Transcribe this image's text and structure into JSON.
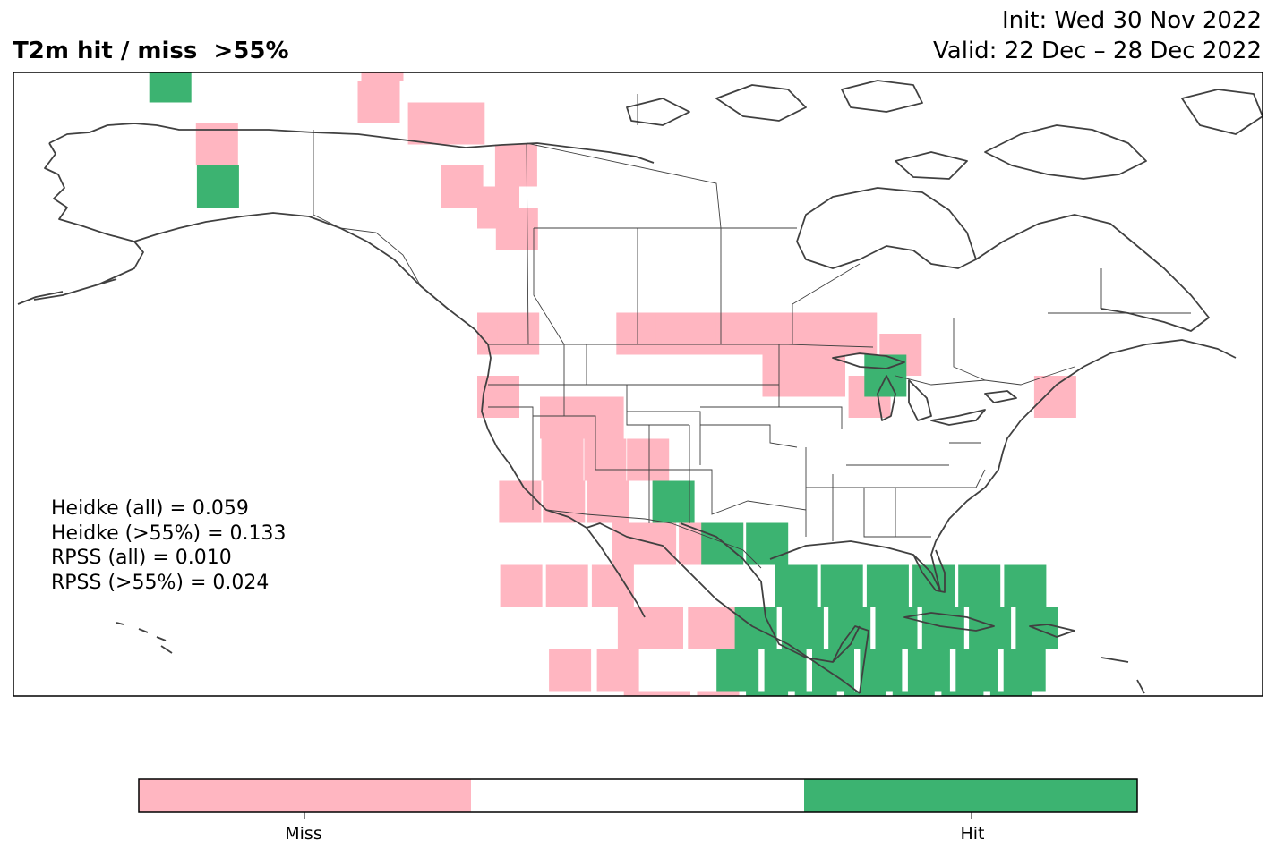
{
  "title": "T2m hit / miss  >55%",
  "init_text": "Init: Wed 30 Nov 2022",
  "valid_text": "Valid: 22 Dec – 28 Dec 2022",
  "stats": [
    "Heidke (all) = 0.059",
    "Heidke (>55%) = 0.133",
    "RPSS (all) = 0.010",
    "RPSS (>55%) = 0.024"
  ],
  "colors": {
    "miss": "#ffb6c1",
    "hit": "#3cb371",
    "neutral": "#ffffff",
    "coast": "#404040",
    "frame": "#000000"
  },
  "legend": {
    "categories": [
      "Miss",
      "",
      "Hit"
    ]
  },
  "grid_cells": {
    "miss": [
      [
        -168,
        67
      ],
      [
        -160,
        69
      ],
      [
        -155,
        69
      ],
      [
        -150,
        69
      ],
      [
        -158,
        67
      ],
      [
        -162,
        64
      ],
      [
        -156,
        59
      ],
      [
        -138,
        63
      ],
      [
        -138,
        61
      ],
      [
        -132,
        60
      ],
      [
        -128,
        60
      ],
      [
        -122,
        58
      ],
      [
        -128,
        57
      ],
      [
        -124,
        56
      ],
      [
        -122,
        55
      ],
      [
        -124,
        50
      ],
      [
        -122,
        50
      ],
      [
        -124,
        47
      ],
      [
        -118,
        46
      ],
      [
        -114,
        46
      ],
      [
        -118,
        44
      ],
      [
        -114,
        44
      ],
      [
        -110,
        44
      ],
      [
        -122,
        42
      ],
      [
        -118,
        42
      ],
      [
        -114,
        42
      ],
      [
        -112,
        40
      ],
      [
        -110,
        40
      ],
      [
        -106,
        40
      ],
      [
        -104,
        40
      ],
      [
        -122,
        38
      ],
      [
        -118,
        38
      ],
      [
        -114,
        38
      ],
      [
        -112,
        36
      ],
      [
        -110,
        36
      ],
      [
        -106,
        36
      ],
      [
        -104,
        36
      ],
      [
        -118,
        34
      ],
      [
        -114,
        34
      ],
      [
        -112,
        32
      ],
      [
        -110,
        32
      ],
      [
        -106,
        32
      ],
      [
        -110,
        50
      ],
      [
        -106,
        50
      ],
      [
        -104,
        50
      ],
      [
        -100,
        50
      ],
      [
        -96,
        50
      ],
      [
        -94,
        50
      ],
      [
        -90,
        50
      ],
      [
        -88,
        50
      ],
      [
        -84,
        49
      ],
      [
        -96,
        48
      ],
      [
        -92,
        48
      ],
      [
        -88,
        47
      ],
      [
        -70,
        47
      ]
    ],
    "hit": [
      [
        -168,
        70
      ],
      [
        -164,
        68
      ],
      [
        -165,
        64
      ],
      [
        -163,
        62
      ],
      [
        -155,
        57
      ],
      [
        -150,
        69
      ],
      [
        -86,
        48
      ],
      [
        -108,
        42
      ],
      [
        -104,
        40
      ],
      [
        -100,
        40
      ],
      [
        -98,
        38
      ],
      [
        -94,
        38
      ],
      [
        -90,
        38
      ],
      [
        -86,
        38
      ],
      [
        -82,
        38
      ],
      [
        -78,
        38
      ],
      [
        -102,
        36
      ],
      [
        -98,
        36
      ],
      [
        -94,
        36
      ],
      [
        -90,
        36
      ],
      [
        -86,
        36
      ],
      [
        -82,
        36
      ],
      [
        -78,
        36
      ],
      [
        -104,
        34
      ],
      [
        -100,
        34
      ],
      [
        -96,
        34
      ],
      [
        -92,
        34
      ],
      [
        -88,
        34
      ],
      [
        -84,
        34
      ],
      [
        -80,
        34
      ],
      [
        -102,
        32
      ],
      [
        -98,
        32
      ],
      [
        -94,
        32
      ],
      [
        -90,
        32
      ],
      [
        -86,
        32
      ],
      [
        -82,
        32
      ],
      [
        -98,
        30
      ],
      [
        -94,
        30
      ],
      [
        -82,
        29
      ],
      [
        -96,
        28
      ],
      [
        -81,
        27
      ]
    ]
  }
}
